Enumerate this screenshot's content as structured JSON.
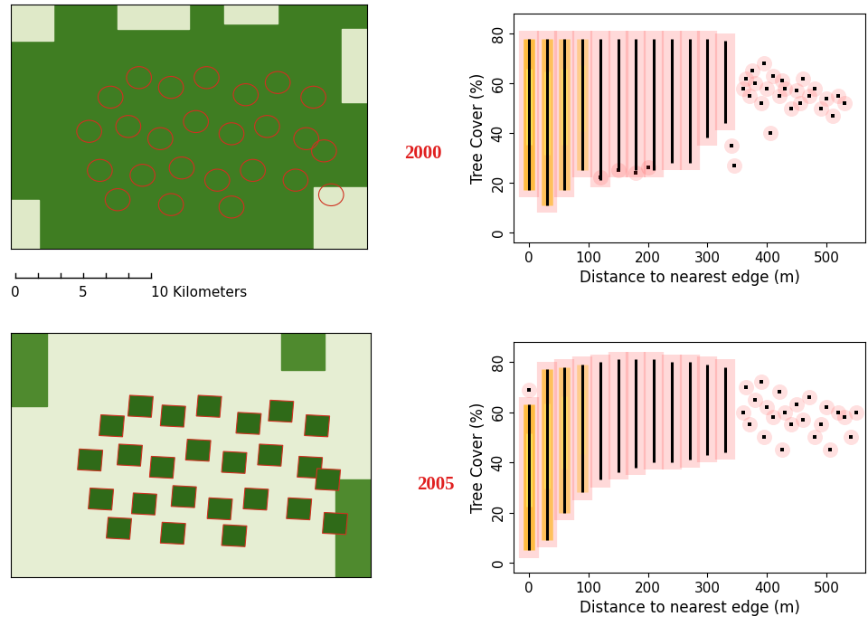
{
  "chart_data": [
    {
      "type": "scatter",
      "title": "2000",
      "x_label": "Distance to nearest edge (m)",
      "y_label": "Tree Cover (%)",
      "xlim": [
        -25,
        565
      ],
      "ylim": [
        -4,
        88
      ],
      "xticks": [
        0,
        100,
        200,
        300,
        400,
        500
      ],
      "yticks": [
        0,
        20,
        40,
        60,
        80
      ],
      "columns": {
        "x": [
          0,
          30,
          60,
          90,
          120,
          150,
          180,
          210,
          240,
          270,
          300,
          330
        ],
        "low": [
          17,
          11,
          17,
          25,
          21,
          25,
          25,
          25,
          28,
          28,
          38,
          44
        ],
        "high": [
          78,
          78,
          78,
          78,
          78,
          78,
          78,
          78,
          78,
          78,
          78,
          77
        ]
      },
      "points": {
        "x": [
          360,
          365,
          370,
          375,
          380,
          390,
          395,
          400,
          405,
          410,
          420,
          425,
          430,
          440,
          450,
          455,
          460,
          470,
          480,
          490,
          500,
          510,
          520,
          530,
          345,
          340,
          120,
          150,
          180,
          200
        ],
        "y": [
          58,
          62,
          55,
          65,
          60,
          52,
          68,
          58,
          40,
          63,
          55,
          61,
          58,
          50,
          57,
          52,
          62,
          55,
          58,
          50,
          54,
          47,
          55,
          52,
          27,
          35,
          22,
          25,
          24,
          26
        ]
      }
    },
    {
      "type": "scatter",
      "title": "2005",
      "x_label": "Distance to nearest edge (m)",
      "y_label": "Tree Cover (%)",
      "xlim": [
        -25,
        565
      ],
      "ylim": [
        -4,
        88
      ],
      "xticks": [
        0,
        100,
        200,
        300,
        400,
        500
      ],
      "yticks": [
        0,
        20,
        40,
        60,
        80
      ],
      "columns": {
        "x": [
          0,
          30,
          60,
          90,
          120,
          150,
          180,
          210,
          240,
          270,
          300,
          330
        ],
        "low": [
          5,
          9,
          20,
          28,
          33,
          36,
          38,
          40,
          40,
          41,
          43,
          44
        ],
        "high": [
          63,
          77,
          78,
          79,
          80,
          81,
          81,
          81,
          80,
          80,
          79,
          78
        ]
      },
      "points": {
        "x": [
          360,
          365,
          370,
          380,
          390,
          395,
          400,
          410,
          420,
          425,
          430,
          440,
          450,
          460,
          470,
          480,
          490,
          500,
          505,
          520,
          530,
          540,
          550,
          0
        ],
        "y": [
          60,
          70,
          55,
          65,
          72,
          50,
          62,
          58,
          68,
          45,
          60,
          55,
          63,
          57,
          66,
          50,
          55,
          62,
          45,
          60,
          58,
          50,
          60,
          69
        ]
      }
    }
  ],
  "scale_bar": {
    "ticks": [
      0,
      5,
      {
        "value": 10,
        "label": "10 Kilometers"
      }
    ]
  }
}
